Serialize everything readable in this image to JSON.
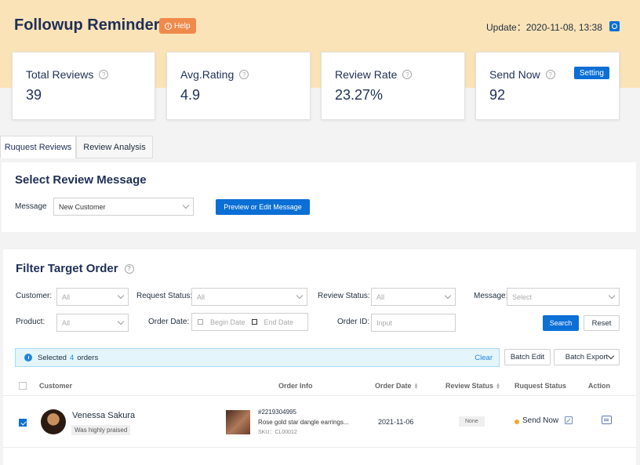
{
  "header": {
    "title": "Followup Reminder",
    "help_label": "Help",
    "update_text": "Update：2020-11-08, 13:38"
  },
  "stats": [
    {
      "label": "Total Reviews",
      "value": "39"
    },
    {
      "label": "Avg.Rating",
      "value": "4.9"
    },
    {
      "label": "Review Rate",
      "value": "23.27%"
    },
    {
      "label": "Send Now",
      "value": "92",
      "button": "Setting"
    }
  ],
  "tabs": [
    {
      "label": "Ruquest Reviews",
      "active": true
    },
    {
      "label": "Review Analysis",
      "active": false
    }
  ],
  "select_message": {
    "title": "Select Review Message",
    "message_label": "Message",
    "message_value": "New Customer",
    "preview_button": "Preview or Edit Message"
  },
  "filter": {
    "title": "Filter Target Order",
    "customer_label": "Customer:",
    "customer_value": "All",
    "request_status_label": "Request Status:",
    "request_status_value": "All",
    "review_status_label": "Review Status:",
    "review_status_value": "All",
    "message_label": "Message:",
    "message_placeholder": "Select",
    "product_label": "Product:",
    "product_value": "All",
    "order_date_label": "Order Date:",
    "begin_date_placeholder": "Begin Date",
    "end_date_placeholder": "End Date",
    "order_id_label": "Order ID:",
    "order_id_placeholder": "Input",
    "search_button": "Search",
    "reset_button": "Reset"
  },
  "selection": {
    "prefix": "Selected",
    "count": "4",
    "suffix": "orders",
    "clear": "Clear",
    "batch_edit": "Batch Edit",
    "batch_export": "Batch Export"
  },
  "table": {
    "headers": {
      "customer": "Customer",
      "order_info": "Order Info",
      "order_date": "Order Date",
      "review_status": "Review Status",
      "request_status": "Ruquest Status",
      "action": "Action"
    },
    "rows": [
      {
        "customer_name": "Venessa Sakura",
        "customer_badge": "Was highly praised",
        "order_no": "#2219304995",
        "order_desc": "Rose gold star dangle earrings...",
        "sku": "SKU：CL00012",
        "order_date": "2021-11-06",
        "review_status": "None",
        "request_status": "Send Now",
        "selected": true
      }
    ]
  },
  "colors": {
    "accent": "#0b6fd6",
    "header_band": "#fbe3b8",
    "help": "#f08a4b",
    "info_bg": "#e4f5fc",
    "pending_dot": "#f5a623"
  }
}
